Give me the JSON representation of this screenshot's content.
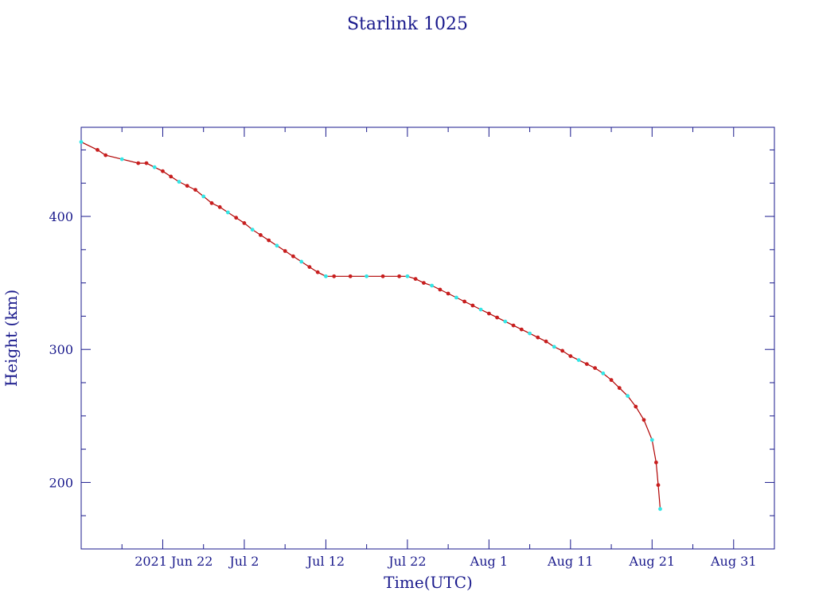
{
  "colors": {
    "axis": "#1a1a8c",
    "text": "#1a1a8c",
    "line": "#b00000",
    "marker_red": "#c81e1e",
    "marker_cyan": "#33e6e6"
  },
  "chart_data": {
    "type": "scatter",
    "title": "Starlink 1025",
    "xlabel": "Time(UTC)",
    "ylabel": "Height (km)",
    "x_ticks": [
      {
        "date": "2021-06-22",
        "label": "2021 Jun 22"
      },
      {
        "date": "2021-07-02",
        "label": "Jul  2"
      },
      {
        "date": "2021-07-12",
        "label": "Jul 12"
      },
      {
        "date": "2021-07-22",
        "label": "Jul 22"
      },
      {
        "date": "2021-08-01",
        "label": "Aug  1"
      },
      {
        "date": "2021-08-11",
        "label": "Aug 11"
      },
      {
        "date": "2021-08-21",
        "label": "Aug 21"
      },
      {
        "date": "2021-08-31",
        "label": "Aug 31"
      }
    ],
    "y_ticks": [
      200,
      300,
      400
    ],
    "xlim": [
      "2021-06-12",
      "2021-09-05"
    ],
    "ylim": [
      150,
      467
    ],
    "grid": false,
    "series": [
      {
        "color": "#b00000",
        "style": "line+markers",
        "points": [
          [
            "2021-06-12",
            456
          ],
          [
            "2021-06-14",
            450
          ],
          [
            "2021-06-15",
            446
          ],
          [
            "2021-06-17",
            443
          ],
          [
            "2021-06-19",
            440
          ],
          [
            "2021-06-20",
            440
          ],
          [
            "2021-06-21",
            437
          ],
          [
            "2021-06-22",
            434
          ],
          [
            "2021-06-23",
            430
          ],
          [
            "2021-06-24",
            426
          ],
          [
            "2021-06-25",
            423
          ],
          [
            "2021-06-26",
            420
          ],
          [
            "2021-06-27",
            415
          ],
          [
            "2021-06-28",
            410
          ],
          [
            "2021-06-29",
            407
          ],
          [
            "2021-06-30",
            403
          ],
          [
            "2021-07-01",
            399
          ],
          [
            "2021-07-02",
            395
          ],
          [
            "2021-07-03",
            390
          ],
          [
            "2021-07-04",
            386
          ],
          [
            "2021-07-05",
            382
          ],
          [
            "2021-07-06",
            378
          ],
          [
            "2021-07-07",
            374
          ],
          [
            "2021-07-08",
            370
          ],
          [
            "2021-07-09",
            366
          ],
          [
            "2021-07-10",
            362
          ],
          [
            "2021-07-11",
            358
          ],
          [
            "2021-07-12",
            355
          ],
          [
            "2021-07-13",
            355
          ],
          [
            "2021-07-15",
            355
          ],
          [
            "2021-07-17",
            355
          ],
          [
            "2021-07-19",
            355
          ],
          [
            "2021-07-21",
            355
          ],
          [
            "2021-07-22",
            355
          ],
          [
            "2021-07-23",
            353
          ],
          [
            "2021-07-24",
            350
          ],
          [
            "2021-07-25",
            348
          ],
          [
            "2021-07-26",
            345
          ],
          [
            "2021-07-27",
            342
          ],
          [
            "2021-07-28",
            339
          ],
          [
            "2021-07-29",
            336
          ],
          [
            "2021-07-30",
            333
          ],
          [
            "2021-07-31",
            330
          ],
          [
            "2021-08-01",
            327
          ],
          [
            "2021-08-02",
            324
          ],
          [
            "2021-08-03",
            321
          ],
          [
            "2021-08-04",
            318
          ],
          [
            "2021-08-05",
            315
          ],
          [
            "2021-08-06",
            312
          ],
          [
            "2021-08-07",
            309
          ],
          [
            "2021-08-08",
            306
          ],
          [
            "2021-08-09",
            302
          ],
          [
            "2021-08-10",
            299
          ],
          [
            "2021-08-11",
            295
          ],
          [
            "2021-08-12",
            292
          ],
          [
            "2021-08-13",
            289
          ],
          [
            "2021-08-14",
            286
          ],
          [
            "2021-08-15",
            282
          ],
          [
            "2021-08-16",
            277
          ],
          [
            "2021-08-17",
            271
          ],
          [
            "2021-08-18",
            265
          ],
          [
            "2021-08-19",
            257
          ],
          [
            "2021-08-20",
            247
          ],
          [
            "2021-08-21",
            232
          ],
          [
            "2021-08-21T12:00",
            215
          ],
          [
            "2021-08-21T18:00",
            198
          ],
          [
            "2021-08-22",
            180
          ]
        ]
      }
    ]
  }
}
